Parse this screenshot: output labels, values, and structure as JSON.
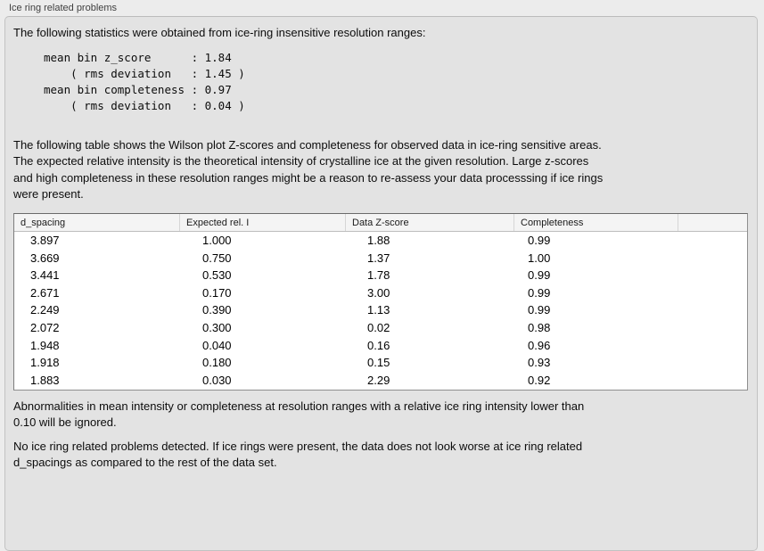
{
  "panel": {
    "title": "Ice ring related problems",
    "intro": "The following statistics were obtained from ice-ring insensitive resolution ranges:",
    "stats_block": "mean bin z_score      : 1.84\n    ( rms deviation   : 1.45 )\nmean bin completeness : 0.97\n    ( rms deviation   : 0.04 )",
    "stats": {
      "mean_bin_z_score": "1.84",
      "z_score_rms_deviation": "1.45",
      "mean_bin_completeness": "0.97",
      "completeness_rms_deviation": "0.04"
    },
    "description": "The following table shows the Wilson plot Z-scores and completeness for observed data in ice-ring sensitive areas.\nThe expected relative intensity is the theoretical intensity of crystalline ice at the given resolution. Large z-scores\nand high completeness in these resolution ranges might be a reason to re-assess your data processsing if ice rings\nwere present.",
    "note": "Abnormalities in mean intensity or completeness at resolution ranges with a relative ice ring intensity lower than\n0.10 will be ignored.",
    "conclusion": "No ice ring related problems detected. If ice rings were present, the data does not look worse at ice ring related\nd_spacings as compared to the rest of the data set."
  },
  "table": {
    "columns": [
      "d_spacing",
      "Expected rel. I",
      "Data Z-score",
      "Completeness"
    ],
    "rows": [
      [
        "3.897",
        "1.000",
        "1.88",
        "0.99"
      ],
      [
        "3.669",
        "0.750",
        "1.37",
        "1.00"
      ],
      [
        "3.441",
        "0.530",
        "1.78",
        "0.99"
      ],
      [
        "2.671",
        "0.170",
        "3.00",
        "0.99"
      ],
      [
        "2.249",
        "0.390",
        "1.13",
        "0.99"
      ],
      [
        "2.072",
        "0.300",
        "0.02",
        "0.98"
      ],
      [
        "1.948",
        "0.040",
        "0.16",
        "0.96"
      ],
      [
        "1.918",
        "0.180",
        "0.15",
        "0.93"
      ],
      [
        "1.883",
        "0.030",
        "2.29",
        "0.92"
      ]
    ]
  },
  "colors": {
    "window_background": "#ececec",
    "panel_background": "#e3e3e3",
    "table_background": "#ffffff",
    "table_header_background": "#f4f4f4",
    "table_border": "#8f8f8f"
  }
}
